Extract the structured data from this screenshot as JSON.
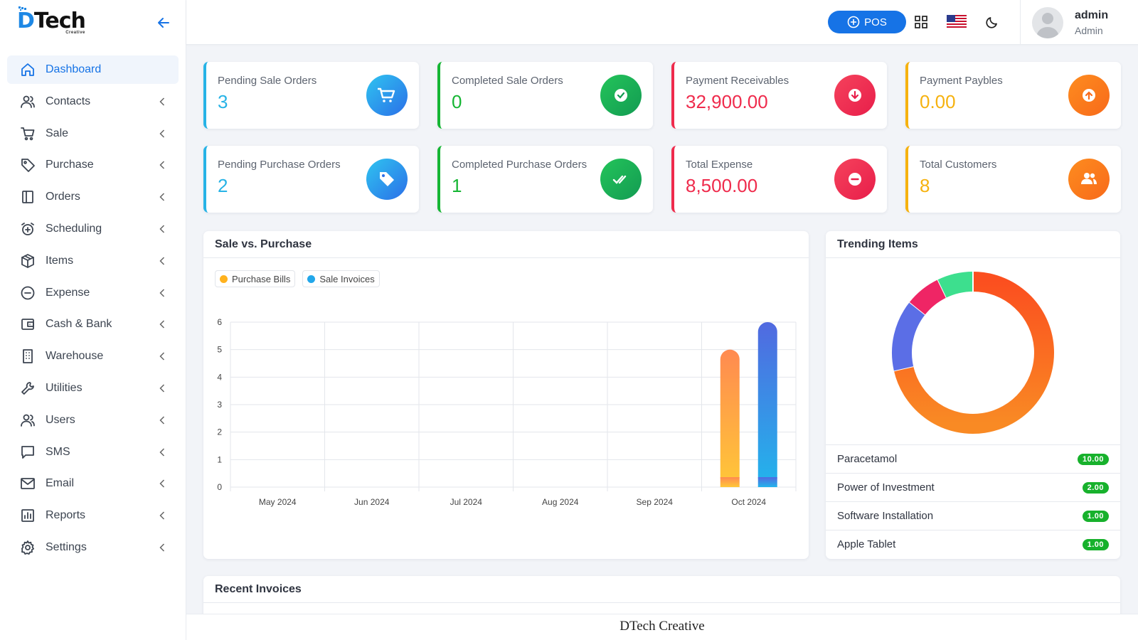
{
  "brand": {
    "logo_text": "Tech",
    "logo_letter": "D",
    "logo_sub": "Creative"
  },
  "sidebar": {
    "items": [
      {
        "label": "Dashboard",
        "icon": "home-icon",
        "active": true
      },
      {
        "label": "Contacts",
        "icon": "users-icon"
      },
      {
        "label": "Sale",
        "icon": "cart-icon"
      },
      {
        "label": "Purchase",
        "icon": "tag-icon"
      },
      {
        "label": "Orders",
        "icon": "book-icon"
      },
      {
        "label": "Scheduling",
        "icon": "alarm-icon"
      },
      {
        "label": "Items",
        "icon": "box-icon"
      },
      {
        "label": "Expense",
        "icon": "minus-circle-icon"
      },
      {
        "label": "Cash & Bank",
        "icon": "wallet-icon"
      },
      {
        "label": "Warehouse",
        "icon": "building-icon"
      },
      {
        "label": "Utilities",
        "icon": "wrench-icon"
      },
      {
        "label": "Users",
        "icon": "users-icon"
      },
      {
        "label": "SMS",
        "icon": "chat-icon"
      },
      {
        "label": "Email",
        "icon": "mail-icon"
      },
      {
        "label": "Reports",
        "icon": "bar-chart-icon"
      },
      {
        "label": "Settings",
        "icon": "gear-icon"
      }
    ]
  },
  "header": {
    "pos_label": "POS",
    "user_name": "admin",
    "user_role": "Admin"
  },
  "stats": [
    {
      "label": "Pending Sale Orders",
      "value": "3",
      "color": "#27b3e6",
      "icon": "cart-icon"
    },
    {
      "label": "Completed Sale Orders",
      "value": "0",
      "color": "#16b634",
      "icon": "check-circle-icon"
    },
    {
      "label": "Payment Receivables",
      "value": "32,900.00",
      "color": "#ef2b4c",
      "icon": "arrow-down-circle-icon"
    },
    {
      "label": "Payment Paybles",
      "value": "0.00",
      "color": "#f6b20f",
      "icon": "arrow-up-circle-icon"
    },
    {
      "label": "Pending Purchase Orders",
      "value": "2",
      "color": "#27b3e6",
      "icon": "tag-icon"
    },
    {
      "label": "Completed Purchase Orders",
      "value": "1",
      "color": "#16b634",
      "icon": "double-check-icon"
    },
    {
      "label": "Total Expense",
      "value": "8,500.00",
      "color": "#ef2b4c",
      "icon": "minus-circle-icon"
    },
    {
      "label": "Total Customers",
      "value": "8",
      "color": "#f6b20f",
      "icon": "users-icon"
    }
  ],
  "sale_vs_purchase": {
    "title": "Sale vs. Purchase",
    "chart_data": {
      "type": "bar",
      "categories": [
        "May 2024",
        "Jun 2024",
        "Jul 2024",
        "Aug 2024",
        "Sep 2024",
        "Oct 2024"
      ],
      "series": [
        {
          "name": "Purchase Bills",
          "values": [
            0,
            0,
            0,
            0,
            0,
            5
          ],
          "color": "#ffb21e"
        },
        {
          "name": "Sale Invoices",
          "values": [
            0,
            0,
            0,
            0,
            0,
            6
          ],
          "color": "#22a7ea"
        }
      ],
      "yticks": [
        "0",
        "1",
        "2",
        "3",
        "4",
        "5",
        "6"
      ],
      "ylim": [
        0,
        6
      ],
      "grid": true,
      "legend": "top-left"
    }
  },
  "trending": {
    "title": "Trending Items",
    "chart_data": {
      "type": "pie",
      "labels": [
        "Paracetamol",
        "Power of Investment",
        "Software Installation",
        "Apple Tablet"
      ],
      "values": [
        10,
        2,
        1,
        1
      ],
      "colors": [
        "#fd6a20",
        "#5b6ee6",
        "#ef2565",
        "#3ddf8e"
      ]
    },
    "items": [
      {
        "name": "Paracetamol",
        "value": "10.00"
      },
      {
        "name": "Power of Investment",
        "value": "2.00"
      },
      {
        "name": "Software Installation",
        "value": "1.00"
      },
      {
        "name": "Apple Tablet",
        "value": "1.00"
      }
    ]
  },
  "recent_invoices": {
    "title": "Recent Invoices"
  },
  "footer": {
    "text": "DTech Creative"
  }
}
